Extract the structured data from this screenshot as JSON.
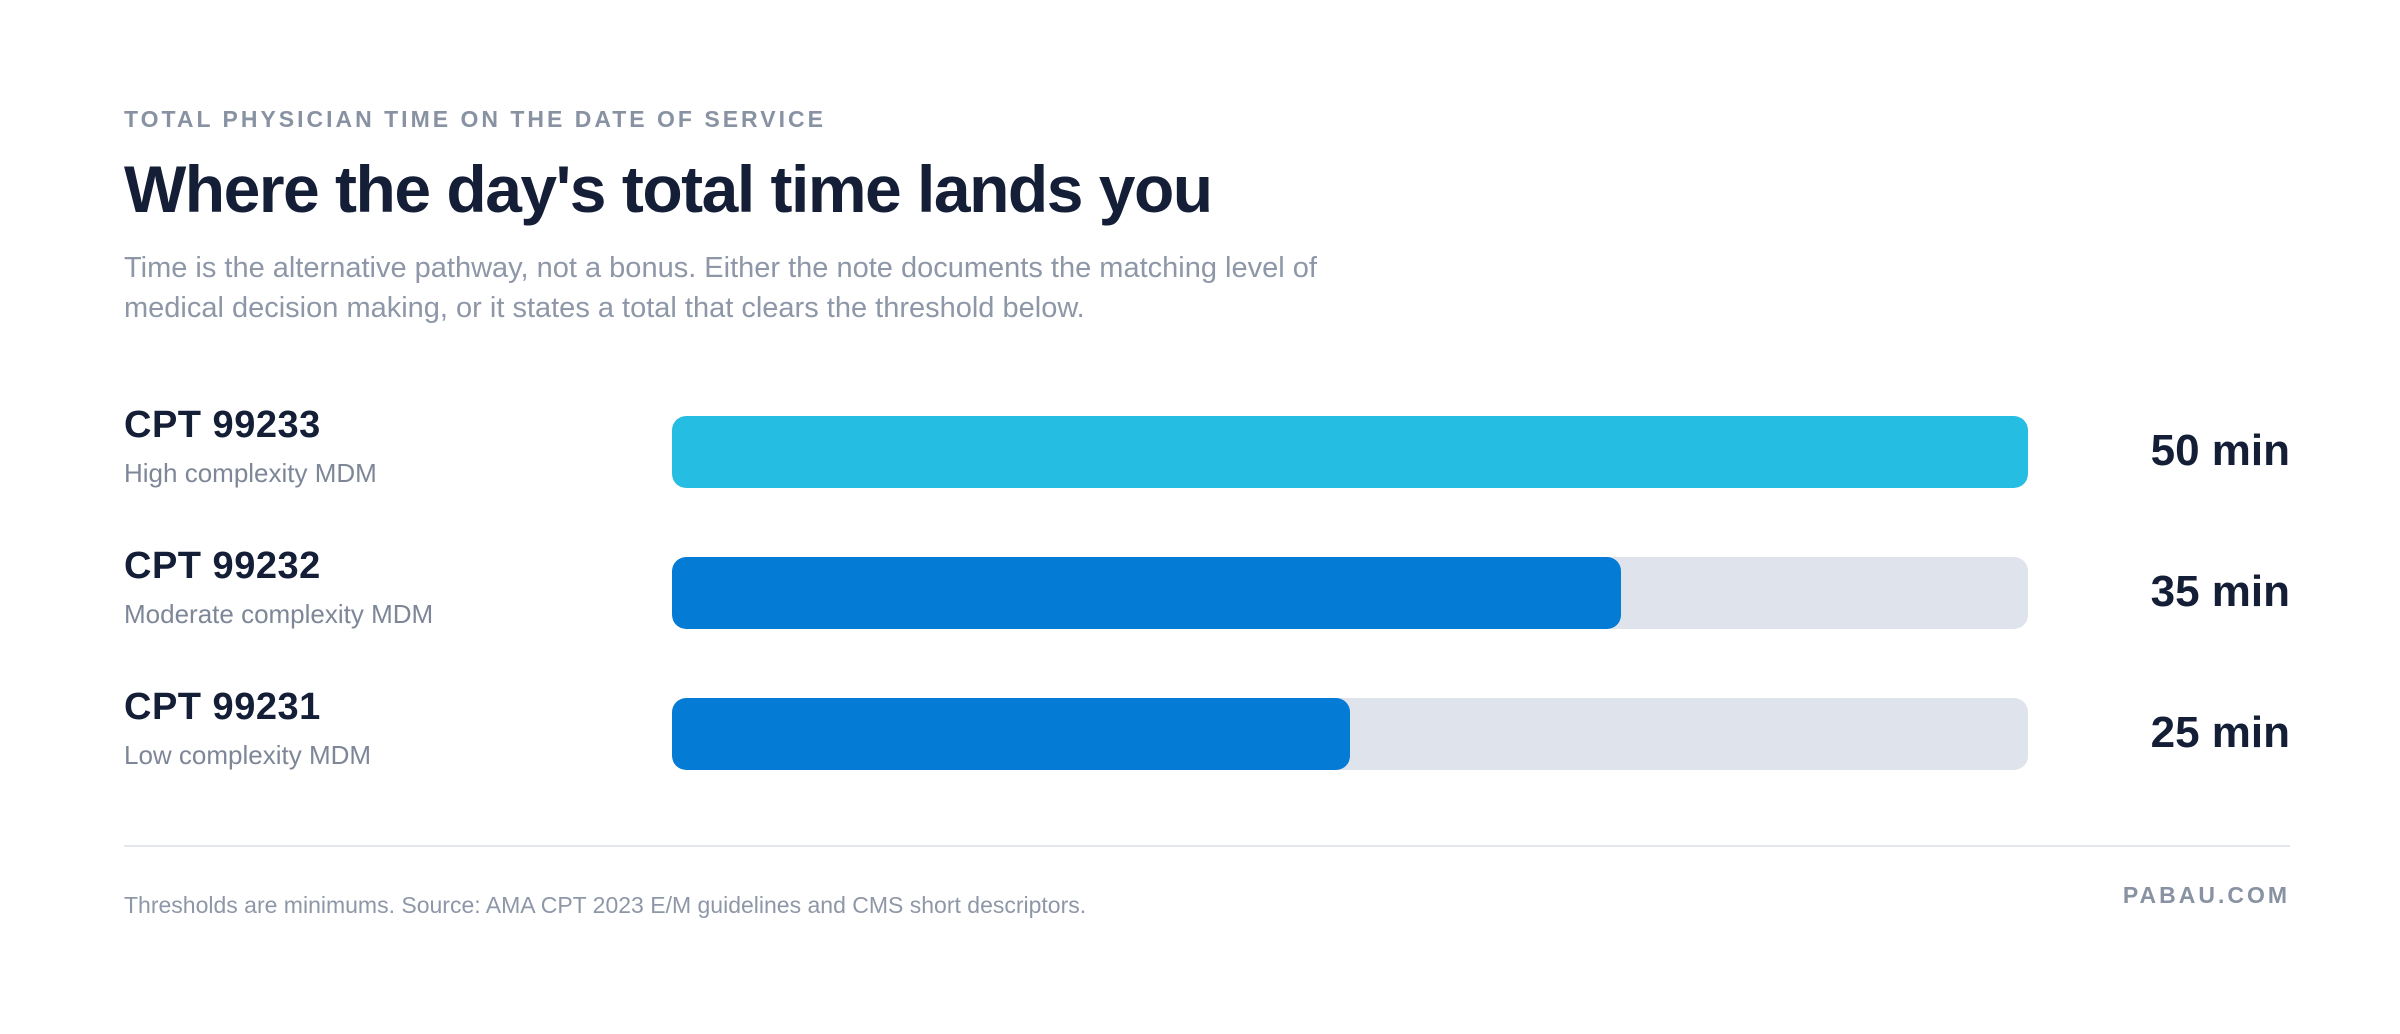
{
  "header": {
    "eyebrow": "TOTAL PHYSICIAN TIME ON THE DATE OF SERVICE",
    "title": "Where the day's total time lands you",
    "subtitle": "Time is the alternative pathway, not a bonus. Either the note documents the matching level of medical decision making, or it states a total that clears the threshold below."
  },
  "chart_data": {
    "type": "bar",
    "orientation": "horizontal",
    "categories": [
      "CPT 99233",
      "CPT 99232",
      "CPT 99231"
    ],
    "category_descriptions": [
      "High complexity MDM",
      "Moderate complexity MDM",
      "Low complexity MDM"
    ],
    "values": [
      50,
      35,
      25
    ],
    "value_labels": [
      "50 min",
      "35 min",
      "25 min"
    ],
    "unit": "min",
    "xlim": [
      0,
      50
    ],
    "bar_colors": [
      "#26bde2",
      "#047bd4",
      "#047bd4"
    ],
    "track_color": "#dfe3ec",
    "grid": false,
    "legend": "none"
  },
  "footer": {
    "note": "Thresholds are minimums. Source: AMA CPT 2023 E/M guidelines and CMS short descriptors.",
    "brand": "PABAU.COM"
  }
}
